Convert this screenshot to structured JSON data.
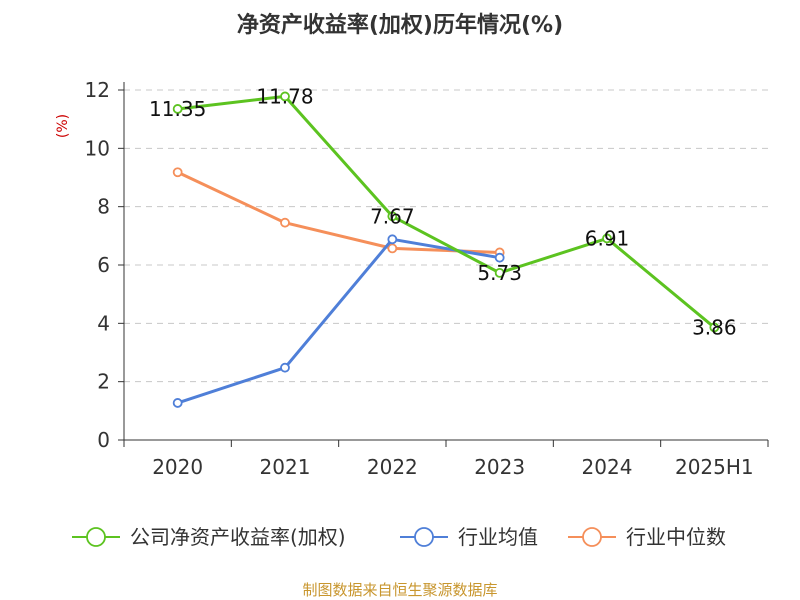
{
  "chart_data": {
    "type": "line",
    "title": "净资产收益率(加权)历年情况(%)",
    "ylabel": "(%)",
    "categories": [
      "2020",
      "2021",
      "2022",
      "2023",
      "2024",
      "2025H1"
    ],
    "ylim": [
      0,
      12
    ],
    "yticks": [
      0,
      2,
      4,
      6,
      8,
      10,
      12
    ],
    "grid": true,
    "legend_position": "bottom",
    "series": [
      {
        "name": "公司净资产收益率(加权)",
        "color": "#5cc320",
        "values": [
          11.35,
          11.78,
          7.67,
          5.73,
          6.91,
          3.86
        ],
        "labels": [
          "11.35",
          "11.78",
          "7.67",
          "5.73",
          "6.91",
          "3.86"
        ]
      },
      {
        "name": "行业均值",
        "color": "#4f7fd8",
        "values": [
          1.27,
          2.48,
          6.88,
          6.25,
          null,
          null
        ]
      },
      {
        "name": "行业中位数",
        "color": "#f58f5a",
        "values": [
          9.18,
          7.45,
          6.57,
          6.43,
          null,
          null
        ]
      }
    ]
  },
  "footer": {
    "source": "制图数据来自恒生聚源数据库"
  }
}
